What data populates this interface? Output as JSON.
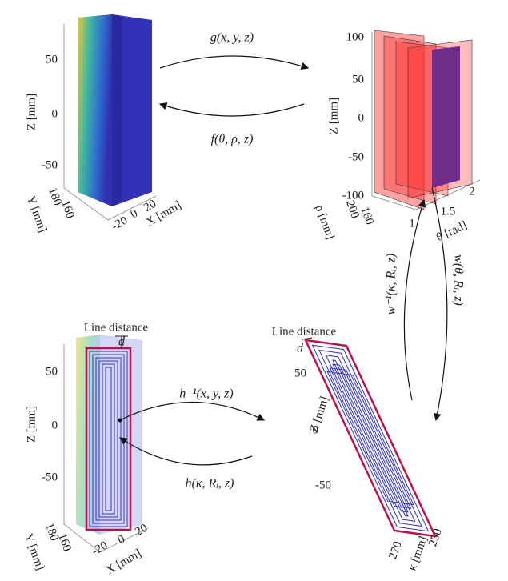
{
  "cartesian_top": {
    "z_label": "Z [mm]",
    "z_ticks": [
      "50",
      "0",
      "-50"
    ],
    "y_label": "Y [mm]",
    "y_ticks": [
      "180",
      "160"
    ],
    "x_label": "X [mm]",
    "x_ticks": [
      "20",
      "0",
      "-20"
    ]
  },
  "cylindrical": {
    "z_label": "Z [mm]",
    "z_ticks": [
      "100",
      "50",
      "0",
      "-50",
      "-100"
    ],
    "rho_label": "ρ [mm]",
    "rho_ticks": [
      "200",
      "160"
    ],
    "theta_label": "θ [rad]",
    "theta_ticks": [
      "1",
      "1.5",
      "2"
    ]
  },
  "cartesian_bottom": {
    "annotation": "Line distance",
    "d": "d",
    "z_label": "Z [mm]",
    "z_ticks": [
      "50",
      "0",
      "-50"
    ],
    "y_label": "Y [mm]",
    "y_ticks": [
      "180",
      "160"
    ],
    "x_label": "X [mm]",
    "x_ticks": [
      "-20",
      "0",
      "20"
    ]
  },
  "unrolled": {
    "annotation": "Line distance",
    "d": "d",
    "z_label": "Z [mm]",
    "z_ticks": [
      "50",
      "0",
      "-50"
    ],
    "kappa_label": "κ [mm]",
    "kappa_ticks": [
      "270",
      "250"
    ]
  },
  "mappings": {
    "g": "g(x, y, z)",
    "f": "f(θ, ρ, z)",
    "w_inv": "w⁻¹(κ, Rᵢ, z)",
    "w": "w(θ, Rᵢ, z)",
    "h_inv": "h⁻¹(x, y, z)",
    "h": "h(κ, Rᵢ, z)"
  }
}
